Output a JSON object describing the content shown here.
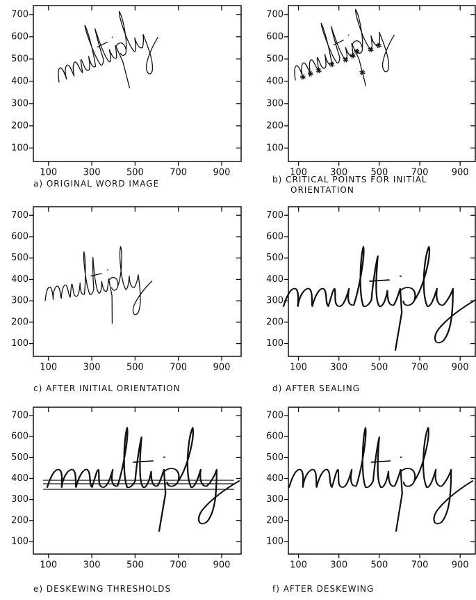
{
  "chart_data": [
    {
      "type": "image",
      "caption": [
        "a) ORIGINAL WORD IMAGE"
      ],
      "xlim": [
        30,
        990
      ],
      "ylim": [
        40,
        740
      ],
      "xticks": [
        100,
        300,
        500,
        700,
        900
      ],
      "yticks": [
        100,
        200,
        300,
        400,
        500,
        600,
        700
      ]
    },
    {
      "type": "image",
      "caption": [
        "b) CRITICAL POINTS FOR INITIAL",
        "ORIENTATION"
      ],
      "xlim": [
        50,
        975
      ],
      "ylim": [
        40,
        740
      ],
      "xticks": [
        100,
        300,
        500,
        700,
        900
      ],
      "yticks": [
        100,
        200,
        300,
        400,
        500,
        600,
        700
      ]
    },
    {
      "type": "image",
      "caption": [
        "c) AFTER INITIAL ORIENTATION"
      ],
      "xlim": [
        30,
        990
      ],
      "ylim": [
        40,
        740
      ],
      "xticks": [
        100,
        300,
        500,
        700,
        900
      ],
      "yticks": [
        100,
        200,
        300,
        400,
        500,
        600,
        700
      ]
    },
    {
      "type": "image",
      "caption": [
        "d) AFTER SEALING"
      ],
      "xlim": [
        50,
        975
      ],
      "ylim": [
        40,
        740
      ],
      "xticks": [
        100,
        300,
        500,
        700,
        900
      ],
      "yticks": [
        100,
        200,
        300,
        400,
        500,
        600,
        700
      ]
    },
    {
      "type": "image",
      "caption": [
        "e) DESKEWING THRESHOLDS"
      ],
      "xlim": [
        30,
        990
      ],
      "ylim": [
        40,
        740
      ],
      "xticks": [
        100,
        300,
        500,
        700,
        900
      ],
      "yticks": [
        100,
        200,
        300,
        400,
        500,
        600,
        700
      ]
    },
    {
      "type": "image",
      "caption": [
        "f) AFTER DESKEWING"
      ],
      "xlim": [
        50,
        975
      ],
      "ylim": [
        40,
        740
      ],
      "xticks": [
        100,
        300,
        500,
        700,
        900
      ],
      "yticks": [
        100,
        200,
        300,
        400,
        500,
        600,
        700
      ]
    }
  ]
}
